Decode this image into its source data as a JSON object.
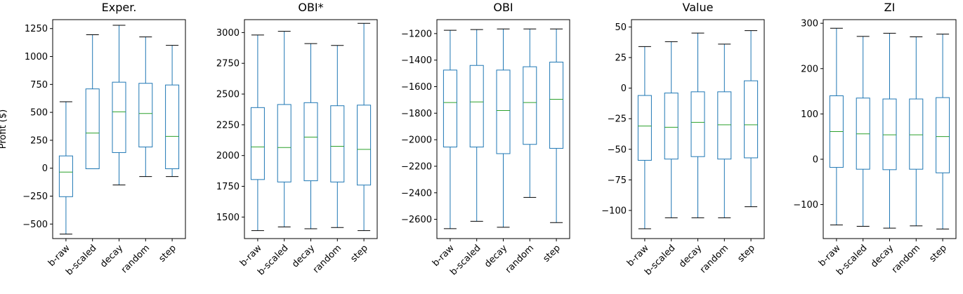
{
  "chart_data": [
    {
      "type": "box",
      "title": "Exper.",
      "ylabel": "Profit ($)",
      "categories": [
        "b-raw",
        "b-scaled",
        "decay",
        "random",
        "step"
      ],
      "ylim": [
        -630,
        1330
      ],
      "yticks": [
        -500,
        -250,
        0,
        250,
        500,
        750,
        1000,
        1250
      ],
      "ytick_labels": [
        "−500",
        "−250",
        "0",
        "250",
        "500",
        "750",
        "1000",
        "1250"
      ],
      "boxes": [
        {
          "whislo": -590,
          "q1": -255,
          "med": -35,
          "q3": 110,
          "whishi": 595
        },
        {
          "whislo": -5,
          "q1": -5,
          "med": 315,
          "q3": 710,
          "whishi": 1195
        },
        {
          "whislo": -150,
          "q1": 140,
          "med": 505,
          "q3": 770,
          "whishi": 1280
        },
        {
          "whislo": -75,
          "q1": 190,
          "med": 490,
          "q3": 760,
          "whishi": 1175
        },
        {
          "whislo": -75,
          "q1": -5,
          "med": 285,
          "q3": 745,
          "whishi": 1100
        }
      ]
    },
    {
      "type": "box",
      "title": "OBI*",
      "ylabel": "",
      "categories": [
        "b-raw",
        "b-scaled",
        "decay",
        "random",
        "step"
      ],
      "ylim": [
        1325,
        3105
      ],
      "yticks": [
        1500,
        1750,
        2000,
        2250,
        2500,
        2750,
        3000
      ],
      "ytick_labels": [
        "1500",
        "1750",
        "2000",
        "2250",
        "2500",
        "2750",
        "3000"
      ],
      "boxes": [
        {
          "whislo": 1390,
          "q1": 1805,
          "med": 2070,
          "q3": 2390,
          "whishi": 2980
        },
        {
          "whislo": 1420,
          "q1": 1785,
          "med": 2065,
          "q3": 2415,
          "whishi": 3010
        },
        {
          "whislo": 1405,
          "q1": 1795,
          "med": 2150,
          "q3": 2430,
          "whishi": 2910
        },
        {
          "whislo": 1415,
          "q1": 1785,
          "med": 2075,
          "q3": 2405,
          "whishi": 2895
        },
        {
          "whislo": 1390,
          "q1": 1760,
          "med": 2050,
          "q3": 2410,
          "whishi": 3075
        }
      ]
    },
    {
      "type": "box",
      "title": "OBI",
      "ylabel": "",
      "categories": [
        "b-raw",
        "b-scaled",
        "decay",
        "random",
        "step"
      ],
      "ylim": [
        -2745,
        -1095
      ],
      "yticks": [
        -2600,
        -2400,
        -2200,
        -2000,
        -1800,
        -1600,
        -1400,
        -1200
      ],
      "ytick_labels": [
        "−2600",
        "−2400",
        "−2200",
        "−2000",
        "−1800",
        "−1600",
        "−1400",
        "−1200"
      ],
      "boxes": [
        {
          "whislo": -2670,
          "q1": -2055,
          "med": -1720,
          "q3": -1475,
          "whishi": -1175
        },
        {
          "whislo": -2615,
          "q1": -2055,
          "med": -1715,
          "q3": -1440,
          "whishi": -1170
        },
        {
          "whislo": -2660,
          "q1": -2105,
          "med": -1780,
          "q3": -1475,
          "whishi": -1165
        },
        {
          "whislo": -2435,
          "q1": -2035,
          "med": -1720,
          "q3": -1450,
          "whishi": -1165
        },
        {
          "whislo": -2625,
          "q1": -2065,
          "med": -1695,
          "q3": -1415,
          "whishi": -1165
        }
      ]
    },
    {
      "type": "box",
      "title": "Value",
      "ylabel": "",
      "categories": [
        "b-raw",
        "b-scaled",
        "decay",
        "random",
        "step"
      ],
      "ylim": [
        -123,
        56
      ],
      "yticks": [
        -100,
        -75,
        -50,
        -25,
        0,
        25,
        50
      ],
      "ytick_labels": [
        "−100",
        "−75",
        "−50",
        "−25",
        "0",
        "25",
        "50"
      ],
      "boxes": [
        {
          "whislo": -115,
          "q1": -59,
          "med": -31,
          "q3": -6,
          "whishi": 34
        },
        {
          "whislo": -106,
          "q1": -58,
          "med": -32,
          "q3": -4,
          "whishi": 38
        },
        {
          "whislo": -106,
          "q1": -56,
          "med": -28,
          "q3": -3,
          "whishi": 45
        },
        {
          "whislo": -106,
          "q1": -58,
          "med": -30,
          "q3": -3,
          "whishi": 36
        },
        {
          "whislo": -97,
          "q1": -57,
          "med": -30,
          "q3": 6,
          "whishi": 47
        }
      ]
    },
    {
      "type": "box",
      "title": "ZI",
      "ylabel": "",
      "categories": [
        "b-raw",
        "b-scaled",
        "decay",
        "random",
        "step"
      ],
      "ylim": [
        -175,
        308
      ],
      "yticks": [
        -100,
        0,
        100,
        200,
        300
      ],
      "ytick_labels": [
        "−100",
        "0",
        "100",
        "200",
        "300"
      ],
      "boxes": [
        {
          "whislo": -145,
          "q1": -18,
          "med": 61,
          "q3": 140,
          "whishi": 289
        },
        {
          "whislo": -148,
          "q1": -22,
          "med": 56,
          "q3": 135,
          "whishi": 271
        },
        {
          "whislo": -152,
          "q1": -23,
          "med": 54,
          "q3": 133,
          "whishi": 278
        },
        {
          "whislo": -147,
          "q1": -22,
          "med": 54,
          "q3": 133,
          "whishi": 270
        },
        {
          "whislo": -154,
          "q1": -30,
          "med": 50,
          "q3": 136,
          "whishi": 276
        }
      ]
    }
  ],
  "colors": {
    "box": "#1f77b4",
    "median": "#2ca02c",
    "cap": "#000000",
    "axis": "#000000"
  }
}
